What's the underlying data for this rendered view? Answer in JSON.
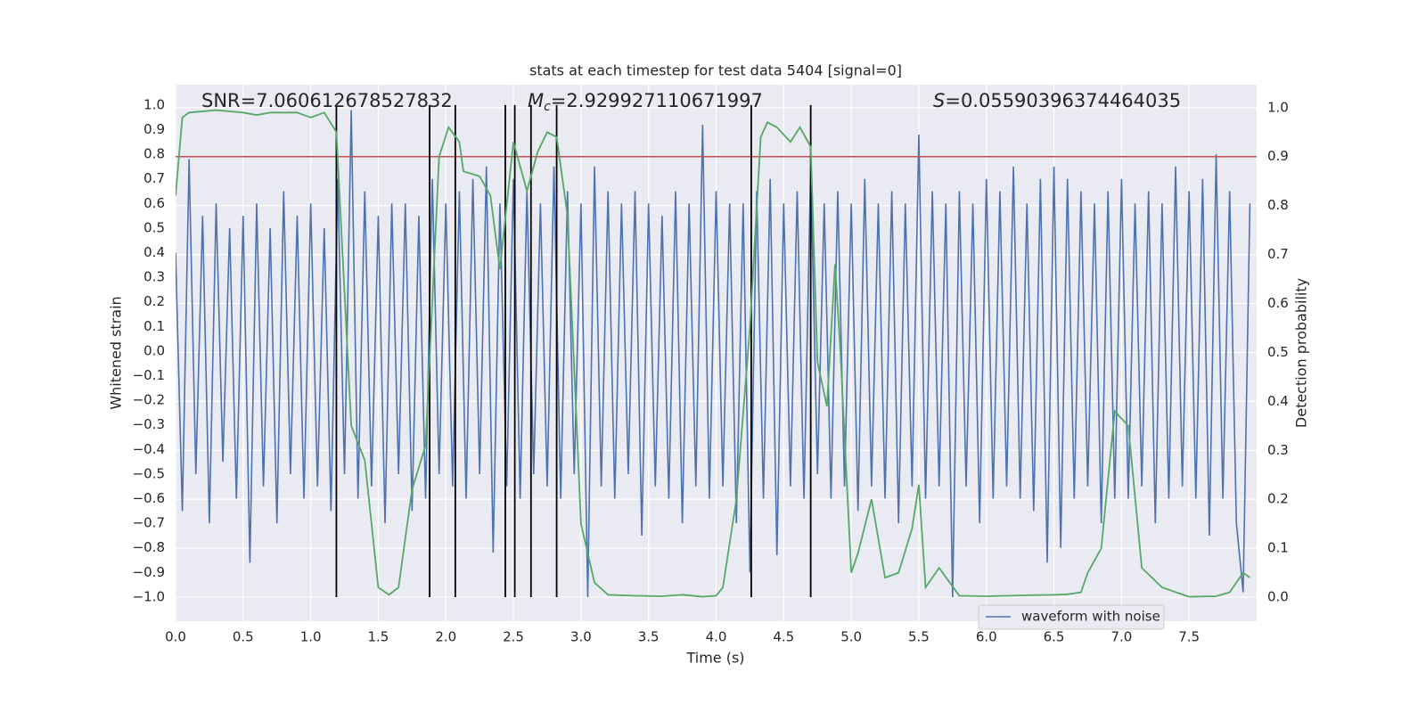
{
  "chart_data": {
    "type": "line",
    "title": "stats at each timestep for test data 5404 [signal=0]",
    "xlabel": "Time (s)",
    "ylabel": "Whitened strain",
    "y2label": "Detection probability",
    "annotations": [
      {
        "text": "SNR=7.060612678527832"
      },
      {
        "symbol": "M",
        "subscript": "c",
        "text": "=2.929927110671997"
      },
      {
        "symbol": "S",
        "text": "=0.05590396374464035"
      }
    ],
    "xlim": [
      0,
      8.0
    ],
    "ylim": [
      -1.098,
      1.083
    ],
    "y2lim": [
      -0.049,
      1.047
    ],
    "grid": true,
    "legend_loc": "best",
    "xticks": [
      {
        "value": 0,
        "label": "0.0"
      },
      {
        "value": 0.5,
        "label": "0.5"
      },
      {
        "value": 1,
        "label": "1.0"
      },
      {
        "value": 1.5,
        "label": "1.5"
      },
      {
        "value": 2,
        "label": "2.0"
      },
      {
        "value": 2.5,
        "label": "2.5"
      },
      {
        "value": 3,
        "label": "3.0"
      },
      {
        "value": 3.5,
        "label": "3.5"
      },
      {
        "value": 4,
        "label": "4.0"
      },
      {
        "value": 4.5,
        "label": "4.5"
      },
      {
        "value": 5,
        "label": "5.0"
      },
      {
        "value": 5.5,
        "label": "5.5"
      },
      {
        "value": 6,
        "label": "6.0"
      },
      {
        "value": 6.5,
        "label": "6.5"
      },
      {
        "value": 7,
        "label": "7.0"
      },
      {
        "value": 7.5,
        "label": "7.5"
      }
    ],
    "yticks": [
      {
        "value": -1.0,
        "label": "−1.0"
      },
      {
        "value": -0.9,
        "label": "−0.9"
      },
      {
        "value": -0.8,
        "label": "−0.8"
      },
      {
        "value": -0.7,
        "label": "−0.7"
      },
      {
        "value": -0.6,
        "label": "−0.6"
      },
      {
        "value": -0.5,
        "label": "−0.5"
      },
      {
        "value": -0.4,
        "label": "−0.4"
      },
      {
        "value": -0.3,
        "label": "−0.3"
      },
      {
        "value": -0.2,
        "label": "−0.2"
      },
      {
        "value": -0.1,
        "label": "−0.1"
      },
      {
        "value": 0,
        "label": "0.0"
      },
      {
        "value": 0.1,
        "label": "0.1"
      },
      {
        "value": 0.2,
        "label": "0.2"
      },
      {
        "value": 0.3,
        "label": "0.3"
      },
      {
        "value": 0.4,
        "label": "0.4"
      },
      {
        "value": 0.5,
        "label": "0.5"
      },
      {
        "value": 0.6,
        "label": "0.6"
      },
      {
        "value": 0.7,
        "label": "0.7"
      },
      {
        "value": 0.8,
        "label": "0.8"
      },
      {
        "value": 0.9,
        "label": "0.9"
      },
      {
        "value": 1.0,
        "label": "1.0"
      }
    ],
    "y2ticks": [
      {
        "value": 0,
        "label": "0.0"
      },
      {
        "value": 0.1,
        "label": "0.1"
      },
      {
        "value": 0.2,
        "label": "0.2"
      },
      {
        "value": 0.3,
        "label": "0.3"
      },
      {
        "value": 0.4,
        "label": "0.4"
      },
      {
        "value": 0.5,
        "label": "0.5"
      },
      {
        "value": 0.6,
        "label": "0.6"
      },
      {
        "value": 0.7,
        "label": "0.7"
      },
      {
        "value": 0.8,
        "label": "0.8"
      },
      {
        "value": 0.9,
        "label": "0.9"
      },
      {
        "value": 1.0,
        "label": "1.0"
      }
    ],
    "hlines": [
      {
        "value": 0.9,
        "color": "#c44e52",
        "axis": "y2"
      }
    ],
    "vlines": {
      "color": "#000000",
      "ymin": -1.0,
      "ymax": 1.0,
      "x": [
        1.19,
        1.88,
        2.07,
        2.44,
        2.51,
        2.63,
        2.82,
        4.26,
        4.7
      ]
    },
    "series": [
      {
        "name": "waveform with noise",
        "color": "#4c72b0",
        "x": [
          0,
          0.05,
          0.1,
          0.15,
          0.2,
          0.25,
          0.3,
          0.35,
          0.4,
          0.45,
          0.5,
          0.55,
          0.6,
          0.65,
          0.7,
          0.75,
          0.8,
          0.85,
          0.9,
          0.95,
          1,
          1.05,
          1.1,
          1.15,
          1.2,
          1.25,
          1.3,
          1.35,
          1.4,
          1.45,
          1.5,
          1.55,
          1.6,
          1.65,
          1.7,
          1.75,
          1.8,
          1.85,
          1.9,
          1.95,
          2,
          2.05,
          2.1,
          2.15,
          2.2,
          2.25,
          2.3,
          2.35,
          2.4,
          2.45,
          2.5,
          2.55,
          2.6,
          2.65,
          2.7,
          2.75,
          2.8,
          2.85,
          2.9,
          2.95,
          3,
          3.05,
          3.1,
          3.15,
          3.2,
          3.25,
          3.3,
          3.35,
          3.4,
          3.45,
          3.5,
          3.55,
          3.6,
          3.65,
          3.7,
          3.75,
          3.8,
          3.85,
          3.9,
          3.95,
          4,
          4.05,
          4.1,
          4.15,
          4.2,
          4.25,
          4.3,
          4.35,
          4.4,
          4.45,
          4.5,
          4.55,
          4.6,
          4.65,
          4.7,
          4.75,
          4.8,
          4.85,
          4.9,
          4.95,
          5,
          5.05,
          5.1,
          5.15,
          5.2,
          5.25,
          5.3,
          5.35,
          5.4,
          5.45,
          5.5,
          5.55,
          5.6,
          5.65,
          5.7,
          5.75,
          5.8,
          5.85,
          5.9,
          5.95,
          6,
          6.05,
          6.1,
          6.15,
          6.2,
          6.25,
          6.3,
          6.35,
          6.4,
          6.45,
          6.5,
          6.55,
          6.6,
          6.65,
          6.7,
          6.75,
          6.8,
          6.85,
          6.9,
          6.95,
          7,
          7.05,
          7.1,
          7.15,
          7.2,
          7.25,
          7.3,
          7.35,
          7.4,
          7.45,
          7.5,
          7.55,
          7.6,
          7.65,
          7.7,
          7.75,
          7.8,
          7.85,
          7.9,
          7.95
        ],
        "values": [
          0.4,
          -0.65,
          0.78,
          -0.5,
          0.55,
          -0.7,
          0.6,
          -0.45,
          0.5,
          -0.6,
          0.55,
          -0.86,
          0.6,
          -0.55,
          0.5,
          -0.7,
          0.65,
          -0.5,
          0.55,
          -0.6,
          0.6,
          -0.55,
          0.5,
          -0.65,
          0.7,
          -0.5,
          0.98,
          -0.6,
          0.65,
          -0.55,
          0.55,
          -0.7,
          0.6,
          -0.5,
          0.6,
          -0.65,
          0.55,
          -0.6,
          0.7,
          -0.5,
          0.6,
          -0.55,
          0.65,
          -0.6,
          0.7,
          -0.5,
          0.75,
          -0.82,
          0.6,
          -0.55,
          0.7,
          -0.6,
          0.65,
          -0.5,
          0.6,
          -0.55,
          0.75,
          -0.6,
          0.65,
          -0.5,
          0.6,
          -1.0,
          0.75,
          -0.55,
          0.65,
          -0.6,
          0.6,
          -0.5,
          0.65,
          -0.75,
          0.6,
          -0.55,
          0.55,
          -0.6,
          0.65,
          -0.7,
          0.6,
          -0.55,
          0.92,
          -0.6,
          0.65,
          -0.55,
          0.6,
          -0.7,
          0.6,
          -0.9,
          0.65,
          -0.6,
          0.7,
          -0.83,
          0.6,
          -0.55,
          0.65,
          -0.6,
          0.75,
          -0.5,
          0.6,
          -0.6,
          0.65,
          -0.55,
          0.6,
          -0.65,
          0.7,
          -0.55,
          0.6,
          -0.6,
          0.65,
          -0.7,
          0.6,
          -0.55,
          0.88,
          -0.6,
          0.65,
          -0.55,
          0.6,
          -1.0,
          0.65,
          -0.55,
          0.6,
          -0.7,
          0.7,
          -0.6,
          0.65,
          -0.55,
          0.75,
          -0.6,
          0.6,
          -0.65,
          0.7,
          -0.86,
          0.75,
          -0.8,
          0.7,
          -0.6,
          0.65,
          -0.55,
          0.6,
          -0.7,
          0.65,
          -0.6,
          0.7,
          -0.6,
          0.6,
          -0.55,
          0.65,
          -0.7,
          0.6,
          -0.6,
          0.75,
          -0.55,
          0.65,
          -0.6,
          0.7,
          -0.75,
          0.8,
          -0.6,
          0.65,
          -0.7,
          -0.98,
          0.6
        ]
      },
      {
        "color": "#55a868",
        "axis": "y2",
        "x": [
          0,
          0.05,
          0.1,
          0.3,
          0.5,
          0.6,
          0.7,
          0.9,
          1.0,
          1.1,
          1.19,
          1.3,
          1.4,
          1.5,
          1.58,
          1.65,
          1.75,
          1.85,
          1.95,
          2.02,
          2.1,
          2.13,
          2.25,
          2.33,
          2.4,
          2.5,
          2.6,
          2.68,
          2.75,
          2.82,
          2.9,
          3.0,
          3.1,
          3.2,
          3.4,
          3.6,
          3.75,
          3.9,
          4.0,
          4.05,
          4.15,
          4.25,
          4.33,
          4.38,
          4.45,
          4.55,
          4.62,
          4.7,
          4.75,
          4.82,
          4.88,
          4.92,
          5.0,
          5.05,
          5.15,
          5.25,
          5.35,
          5.45,
          5.5,
          5.55,
          5.65,
          5.8,
          6.0,
          6.3,
          6.5,
          6.6,
          6.7,
          6.75,
          6.85,
          6.95,
          7.05,
          7.15,
          7.3,
          7.5,
          7.7,
          7.8,
          7.9,
          7.95
        ],
        "values": [
          0.82,
          0.98,
          0.99,
          0.995,
          0.99,
          0.985,
          0.99,
          0.99,
          0.98,
          0.99,
          0.95,
          0.35,
          0.28,
          0.02,
          0.005,
          0.02,
          0.22,
          0.31,
          0.9,
          0.96,
          0.93,
          0.87,
          0.86,
          0.82,
          0.67,
          0.93,
          0.83,
          0.91,
          0.95,
          0.94,
          0.78,
          0.15,
          0.03,
          0.005,
          0.003,
          0.002,
          0.005,
          0.001,
          0.003,
          0.02,
          0.2,
          0.55,
          0.94,
          0.97,
          0.96,
          0.93,
          0.96,
          0.92,
          0.48,
          0.39,
          0.68,
          0.5,
          0.05,
          0.09,
          0.2,
          0.04,
          0.05,
          0.14,
          0.23,
          0.02,
          0.06,
          0.003,
          0.002,
          0.004,
          0.005,
          0.006,
          0.01,
          0.05,
          0.1,
          0.38,
          0.35,
          0.06,
          0.02,
          0.001,
          0.002,
          0.01,
          0.05,
          0.04
        ]
      }
    ]
  }
}
